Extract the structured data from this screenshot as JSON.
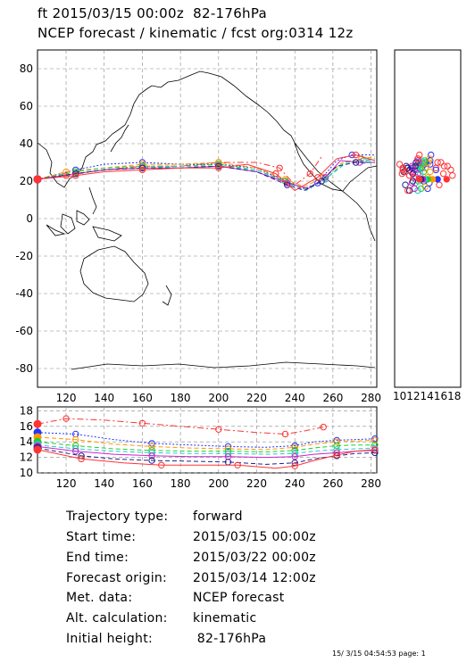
{
  "header": {
    "line1": "ft 2015/03/15 00:00z  82-176hPa",
    "line2": "NCEP forecast / kinematic / fcst org:0314 12z"
  },
  "colors": {
    "red": "#ff3333",
    "blue": "#2233ff",
    "green": "#22cc33",
    "cyan": "#22cccc",
    "magenta": "#cc22cc",
    "orange": "#ff9900",
    "navy": "#222288",
    "pink": "#ffbbbb"
  },
  "chart_data": [
    {
      "type": "line",
      "name": "map",
      "xlim": [
        105,
        283
      ],
      "ylim": [
        -90,
        90
      ],
      "xticks": [
        120,
        140,
        160,
        180,
        200,
        220,
        240,
        260,
        280
      ],
      "yticks": [
        -80,
        -60,
        -40,
        -20,
        0,
        20,
        40,
        60,
        80
      ],
      "grid": true,
      "series": [
        {
          "color": "red",
          "style": "dashdot",
          "x": [
            105,
            120,
            140,
            160,
            180,
            200,
            220,
            232,
            240,
            248,
            254
          ],
          "y": [
            21,
            23,
            26,
            28,
            28,
            30,
            30,
            27,
            18,
            24,
            33
          ]
        },
        {
          "color": "blue",
          "style": "dotted",
          "x": [
            105,
            125,
            140,
            160,
            180,
            200,
            220,
            235,
            245,
            252,
            262,
            270,
            282
          ],
          "y": [
            21,
            26,
            29,
            30,
            29,
            29,
            27,
            20,
            16,
            19,
            31,
            34,
            34
          ]
        },
        {
          "color": "orange",
          "style": "dashed",
          "x": [
            105,
            120,
            140,
            160,
            180,
            200,
            220,
            235,
            245,
            255,
            265,
            275,
            282
          ],
          "y": [
            21,
            25,
            27,
            29,
            29,
            30,
            27,
            21,
            17,
            22,
            30,
            32,
            33
          ]
        },
        {
          "color": "green",
          "style": "dashed",
          "x": [
            105,
            125,
            140,
            160,
            180,
            200,
            220,
            235,
            246,
            256,
            266,
            276,
            282
          ],
          "y": [
            21,
            25,
            27,
            28,
            28,
            29,
            26,
            20,
            16,
            21,
            30,
            31,
            32
          ]
        },
        {
          "color": "cyan",
          "style": "dashed",
          "x": [
            105,
            125,
            140,
            160,
            180,
            200,
            220,
            236,
            246,
            256,
            266,
            276,
            282
          ],
          "y": [
            21,
            24,
            26,
            27,
            28,
            28,
            26,
            19,
            15,
            21,
            29,
            31,
            31
          ]
        },
        {
          "color": "magenta",
          "style": "solid",
          "x": [
            105,
            125,
            140,
            160,
            180,
            200,
            220,
            236,
            247,
            256,
            264,
            274,
            282
          ],
          "y": [
            21,
            24,
            26,
            27,
            27,
            28,
            25,
            19,
            16,
            22,
            31,
            30,
            30
          ]
        },
        {
          "color": "navy",
          "style": "dashed",
          "x": [
            105,
            125,
            140,
            160,
            180,
            200,
            220,
            236,
            245,
            254,
            262,
            272,
            282
          ],
          "y": [
            21,
            24,
            26,
            27,
            27,
            28,
            25,
            18,
            15,
            20,
            28,
            30,
            30
          ]
        },
        {
          "color": "red",
          "style": "solid",
          "x": [
            105,
            125,
            140,
            160,
            180,
            200,
            215,
            230,
            240,
            252,
            262,
            272,
            282
          ],
          "y": [
            21,
            23,
            25,
            26,
            27,
            27,
            29,
            24,
            15,
            22,
            32,
            34,
            31
          ]
        }
      ]
    },
    {
      "type": "scatter",
      "name": "side-panel",
      "xlim": [
        10,
        18
      ],
      "ylim": [
        -90,
        90
      ],
      "xticks_label": "1012141618"
    },
    {
      "type": "line",
      "name": "height",
      "xlim": [
        105,
        283
      ],
      "ylim": [
        10,
        18.5
      ],
      "xticks": [
        120,
        140,
        160,
        180,
        200,
        220,
        240,
        260,
        280
      ],
      "yticks": [
        10,
        12,
        14,
        16,
        18
      ],
      "grid": true,
      "series": [
        {
          "color": "red",
          "style": "dashdot",
          "x": [
            105,
            120,
            140,
            160,
            180,
            200,
            220,
            235,
            245,
            255
          ],
          "y": [
            16.3,
            17.0,
            16.8,
            16.4,
            16.0,
            15.6,
            15.2,
            15.0,
            15.4,
            15.9
          ]
        },
        {
          "color": "blue",
          "style": "dotted",
          "x": [
            105,
            125,
            145,
            165,
            185,
            205,
            225,
            240,
            250,
            262,
            272,
            282
          ],
          "y": [
            15.2,
            15.0,
            14.3,
            13.8,
            13.6,
            13.4,
            13.3,
            13.5,
            14.0,
            14.2,
            14.3,
            14.4
          ]
        },
        {
          "color": "orange",
          "style": "dashed",
          "x": [
            105,
            125,
            145,
            165,
            185,
            205,
            225,
            240,
            250,
            262,
            272,
            282
          ],
          "y": [
            14.6,
            14.3,
            13.7,
            13.4,
            13.2,
            13.1,
            13.0,
            13.3,
            13.7,
            14.0,
            14.1,
            14.2
          ]
        },
        {
          "color": "green",
          "style": "dashed",
          "x": [
            105,
            125,
            145,
            165,
            185,
            205,
            225,
            240,
            250,
            262,
            272,
            282
          ],
          "y": [
            14.0,
            13.5,
            13.1,
            12.9,
            12.8,
            12.8,
            12.7,
            12.9,
            13.2,
            13.5,
            13.6,
            13.6
          ]
        },
        {
          "color": "cyan",
          "style": "dashed",
          "x": [
            105,
            125,
            145,
            165,
            185,
            205,
            225,
            240,
            250,
            262,
            272,
            282
          ],
          "y": [
            13.6,
            13.1,
            12.8,
            12.6,
            12.5,
            12.5,
            12.4,
            12.5,
            12.8,
            13.0,
            13.1,
            13.2
          ]
        },
        {
          "color": "magenta",
          "style": "solid",
          "x": [
            105,
            125,
            145,
            165,
            185,
            205,
            225,
            240,
            250,
            262,
            272,
            282
          ],
          "y": [
            13.4,
            12.8,
            12.4,
            12.2,
            12.1,
            12.1,
            12.0,
            12.1,
            12.4,
            12.6,
            12.8,
            12.9
          ]
        },
        {
          "color": "navy",
          "style": "dashed",
          "x": [
            105,
            128,
            145,
            165,
            185,
            205,
            225,
            240,
            250,
            262,
            272,
            282
          ],
          "y": [
            13.2,
            12.2,
            11.8,
            11.6,
            11.5,
            11.4,
            11.1,
            11.3,
            11.8,
            12.2,
            12.5,
            12.6
          ]
        },
        {
          "color": "red",
          "style": "solid",
          "x": [
            105,
            128,
            150,
            170,
            190,
            210,
            230,
            240,
            250,
            262,
            272,
            282
          ],
          "y": [
            13.0,
            11.8,
            11.3,
            11.0,
            11.0,
            11.0,
            10.6,
            10.9,
            11.6,
            12.3,
            12.8,
            13.0
          ]
        }
      ]
    }
  ],
  "info": [
    {
      "label": "Trajectory type:",
      "value": "forward"
    },
    {
      "label": "Start time:",
      "value": "2015/03/15 00:00z"
    },
    {
      "label": "End time:",
      "value": "2015/03/22 00:00z"
    },
    {
      "label": "Forecast origin:",
      "value": "2015/03/14 12:00z"
    },
    {
      "label": "Met. data:",
      "value": "NCEP forecast"
    },
    {
      "label": "Alt. calculation:",
      "value": "kinematic"
    },
    {
      "label": "Initial height:",
      "value": " 82-176hPa"
    }
  ],
  "footer": "15/ 3/15 04:54:53 page: 1"
}
